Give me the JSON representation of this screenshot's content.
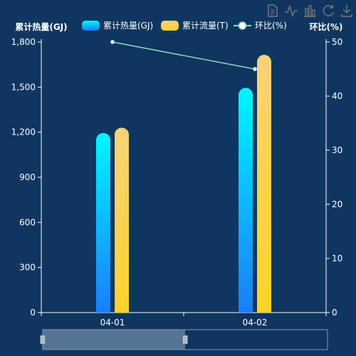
{
  "toolbox": {
    "icons": [
      "data-view-icon",
      "line-chart-icon",
      "bar-chart-icon",
      "restore-icon",
      "save-image-icon"
    ]
  },
  "chart_data": {
    "type": "bar",
    "categories": [
      "04-01",
      "04-02"
    ],
    "y_left": {
      "name": "累计热量(GJ)",
      "min": 0,
      "max": 1800,
      "ticks": [
        0,
        300,
        600,
        900,
        1200,
        1500,
        1800
      ],
      "tick_labels": [
        "0",
        "300",
        "600",
        "900",
        "1,200",
        "1,500",
        "1,800"
      ]
    },
    "y_right": {
      "name": "环比(%)",
      "min": 0,
      "max": 50,
      "ticks": [
        0,
        10,
        20,
        30,
        40,
        50
      ],
      "tick_labels": [
        "0",
        "10",
        "20",
        "30",
        "40",
        "50"
      ]
    },
    "series": [
      {
        "name": "累计热量(GJ)",
        "type": "bar",
        "axis": "left",
        "values": [
          1195,
          1495
        ],
        "gradient": [
          "#00f6ff",
          "#1a7dfa"
        ]
      },
      {
        "name": "累计流量(T)",
        "type": "bar",
        "axis": "left",
        "values": [
          1230,
          1715
        ],
        "gradient": [
          "#f8d277",
          "#fbd32a"
        ]
      },
      {
        "name": "环比(%)",
        "type": "line",
        "axis": "right",
        "values": [
          50,
          45
        ],
        "color": "#8fd4c4"
      }
    ],
    "legend_position": "top",
    "data_zoom": {
      "start_fraction": 0.0,
      "end_fraction": 0.5
    },
    "grid": false
  }
}
